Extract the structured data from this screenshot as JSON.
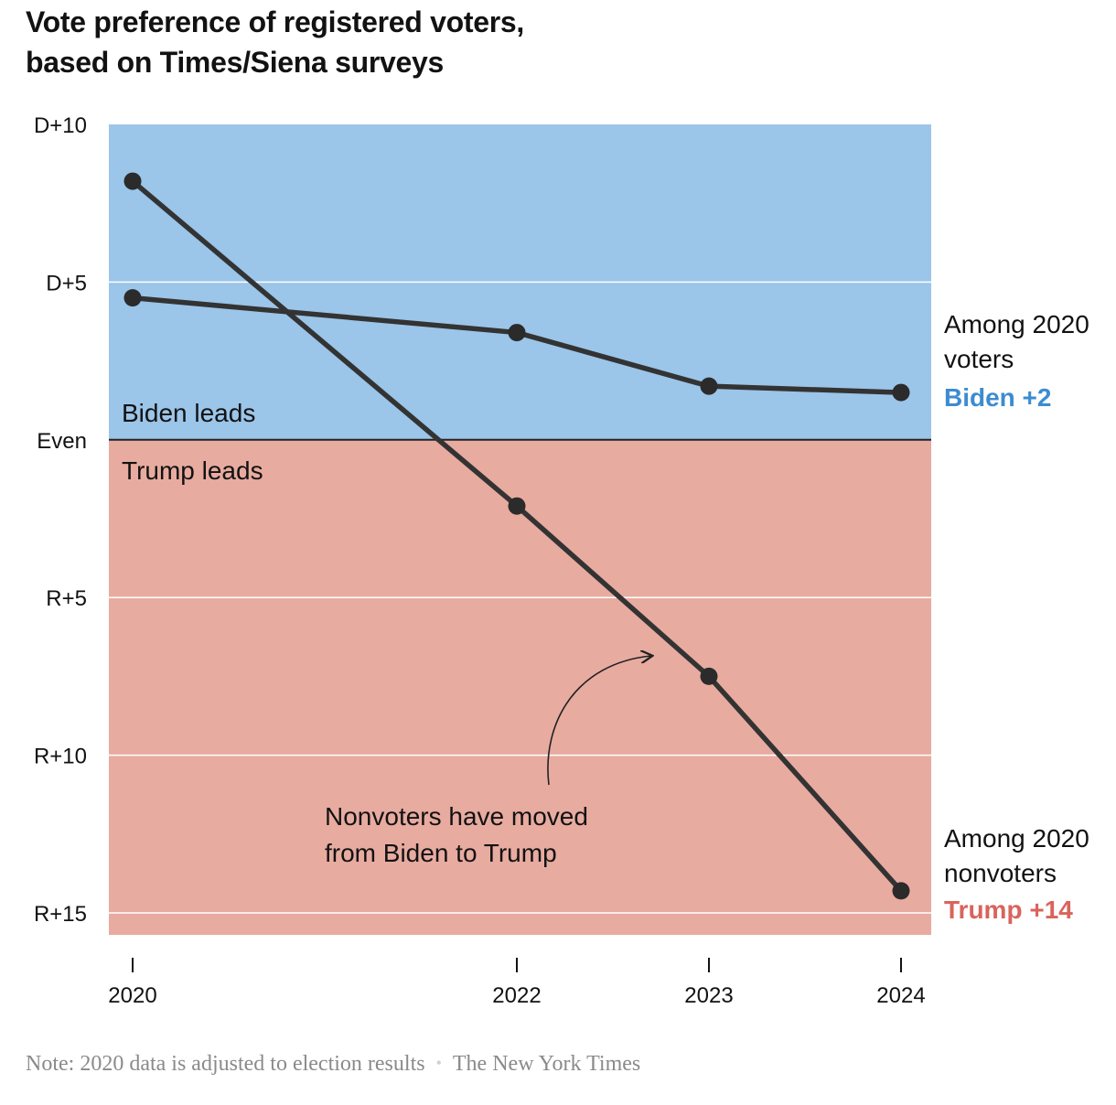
{
  "chart_data": {
    "type": "line",
    "title_lines": [
      "Vote preference of registered voters,",
      "based on Times/Siena surveys"
    ],
    "x": [
      "2020",
      "2022",
      "2023",
      "2024"
    ],
    "x_positions_years": [
      2020,
      2022,
      2023,
      2024
    ],
    "y_scale": "margin, positive = Democratic lead, negative = Republican lead",
    "ylim": [
      -15.5,
      10
    ],
    "y_ticks": [
      {
        "value": 10,
        "label": "D+10"
      },
      {
        "value": 5,
        "label": "D+5"
      },
      {
        "value": 0,
        "label": "Even"
      },
      {
        "value": -5,
        "label": "R+5"
      },
      {
        "value": -10,
        "label": "R+10"
      },
      {
        "value": -15,
        "label": "R+15"
      }
    ],
    "grid": true,
    "regions": [
      {
        "label": "Biden leads",
        "from": 0,
        "to": 10,
        "color": "#9bc5e9"
      },
      {
        "label": "Trump leads",
        "from": -15.5,
        "to": 0,
        "color": "#e8aba0"
      }
    ],
    "series": [
      {
        "label_lines": [
          "Among 2020",
          "voters"
        ],
        "final_label": "Biden +2",
        "final_label_color": "#3d8cd0",
        "values": [
          4.5,
          3.4,
          1.7,
          1.5
        ]
      },
      {
        "label_lines": [
          "Among 2020",
          "nonvoters"
        ],
        "final_label": "Trump +14",
        "final_label_color": "#d9645d",
        "values": [
          8.2,
          -2.1,
          -7.5,
          -14.3
        ]
      }
    ],
    "annotation": {
      "lines": [
        "Nonvoters have moved",
        "from Biden to Trump"
      ]
    }
  },
  "footnote": {
    "note": "Note: 2020 data is adjusted to election results",
    "separator": "•",
    "source": "The New York Times"
  }
}
